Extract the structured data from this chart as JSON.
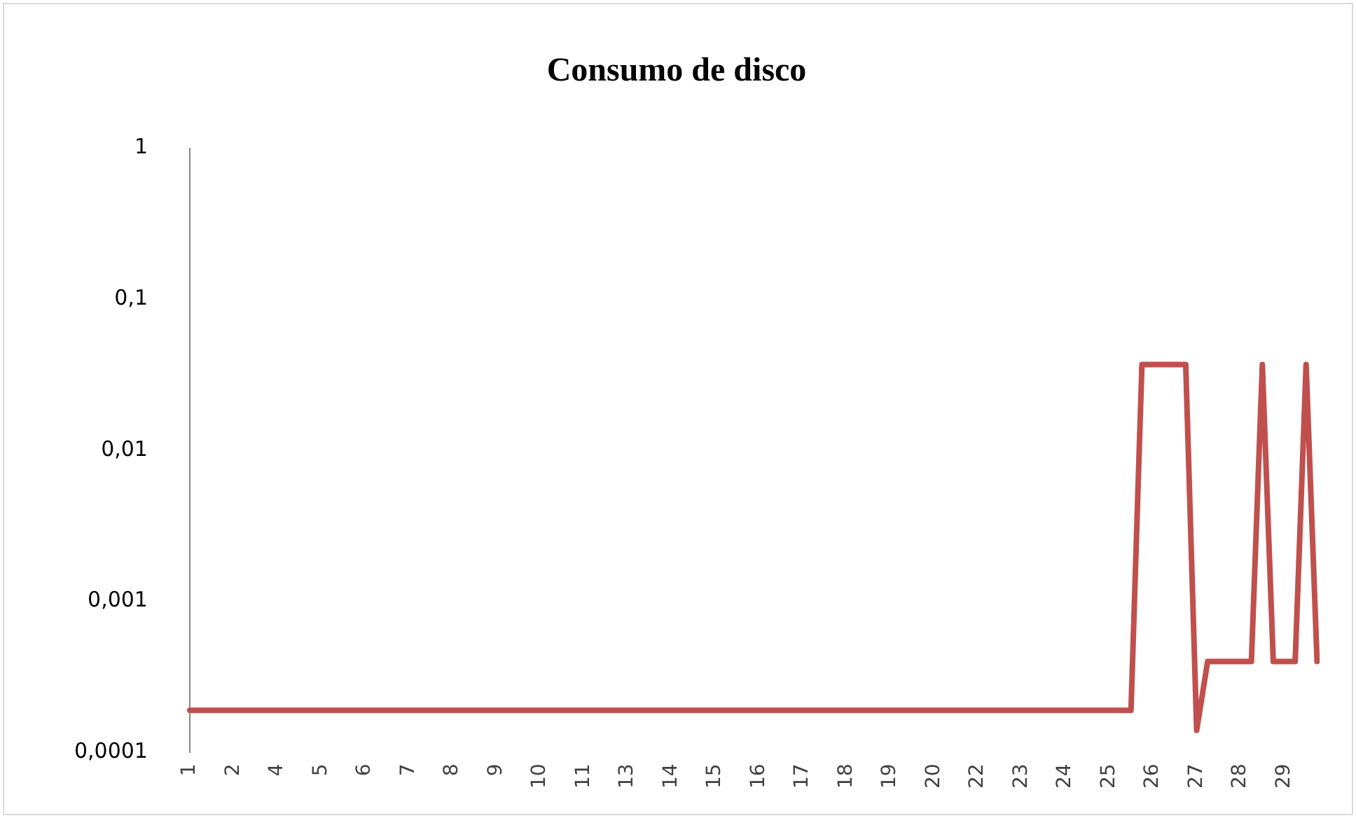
{
  "chart_data": {
    "type": "line",
    "title": "Consumo de disco",
    "categories": [
      "1",
      null,
      null,
      null,
      "2",
      null,
      null,
      null,
      "4",
      null,
      null,
      null,
      "5",
      null,
      null,
      null,
      "6",
      null,
      null,
      null,
      "7",
      null,
      null,
      null,
      "8",
      null,
      null,
      null,
      "9",
      null,
      null,
      null,
      "10",
      null,
      null,
      null,
      "11",
      null,
      null,
      null,
      "13",
      null,
      null,
      null,
      "14",
      null,
      null,
      null,
      "15",
      null,
      null,
      null,
      "16",
      null,
      null,
      null,
      "17",
      null,
      null,
      null,
      "18",
      null,
      null,
      null,
      "19",
      null,
      null,
      null,
      "20",
      null,
      null,
      null,
      "22",
      null,
      null,
      null,
      "23",
      null,
      null,
      null,
      "24",
      null,
      null,
      null,
      "25",
      null,
      null,
      null,
      "26",
      null,
      null,
      null,
      "27",
      null,
      null,
      null,
      "28",
      null,
      null,
      null,
      "29",
      null,
      null,
      null
    ],
    "series": [
      {
        "color": "#c0504d",
        "values": [
          0.00019,
          0.00019,
          0.00019,
          0.00019,
          0.00019,
          0.00019,
          0.00019,
          0.00019,
          0.00019,
          0.00019,
          0.00019,
          0.00019,
          0.00019,
          0.00019,
          0.00019,
          0.00019,
          0.00019,
          0.00019,
          0.00019,
          0.00019,
          0.00019,
          0.00019,
          0.00019,
          0.00019,
          0.00019,
          0.00019,
          0.00019,
          0.00019,
          0.00019,
          0.00019,
          0.00019,
          0.00019,
          0.00019,
          0.00019,
          0.00019,
          0.00019,
          0.00019,
          0.00019,
          0.00019,
          0.00019,
          0.00019,
          0.00019,
          0.00019,
          0.00019,
          0.00019,
          0.00019,
          0.00019,
          0.00019,
          0.00019,
          0.00019,
          0.00019,
          0.00019,
          0.00019,
          0.00019,
          0.00019,
          0.00019,
          0.00019,
          0.00019,
          0.00019,
          0.00019,
          0.00019,
          0.00019,
          0.00019,
          0.00019,
          0.00019,
          0.00019,
          0.00019,
          0.00019,
          0.00019,
          0.00019,
          0.00019,
          0.00019,
          0.00019,
          0.00019,
          0.00019,
          0.00019,
          0.00019,
          0.00019,
          0.00019,
          0.00019,
          0.00019,
          0.00019,
          0.00019,
          0.00019,
          0.00019,
          0.00019,
          0.00019,
          0.037,
          0.037,
          0.037,
          0.037,
          0.037,
          0.00014,
          0.0004,
          0.0004,
          0.0004,
          0.0004,
          0.0004,
          0.037,
          0.0004,
          0.0004,
          0.0004,
          0.037,
          0.0004
        ]
      }
    ],
    "log": "y",
    "ylim": [
      0.0001,
      1
    ],
    "yticks": [
      {
        "value": 0.0001,
        "label": "0,0001"
      },
      {
        "value": 0.001,
        "label": "0,001"
      },
      {
        "value": 0.01,
        "label": "0,01"
      },
      {
        "value": 0.1,
        "label": "0,1"
      },
      {
        "value": 1,
        "label": "1"
      }
    ],
    "grid": false,
    "legend": false,
    "marker": "none",
    "line_style": "solid"
  }
}
